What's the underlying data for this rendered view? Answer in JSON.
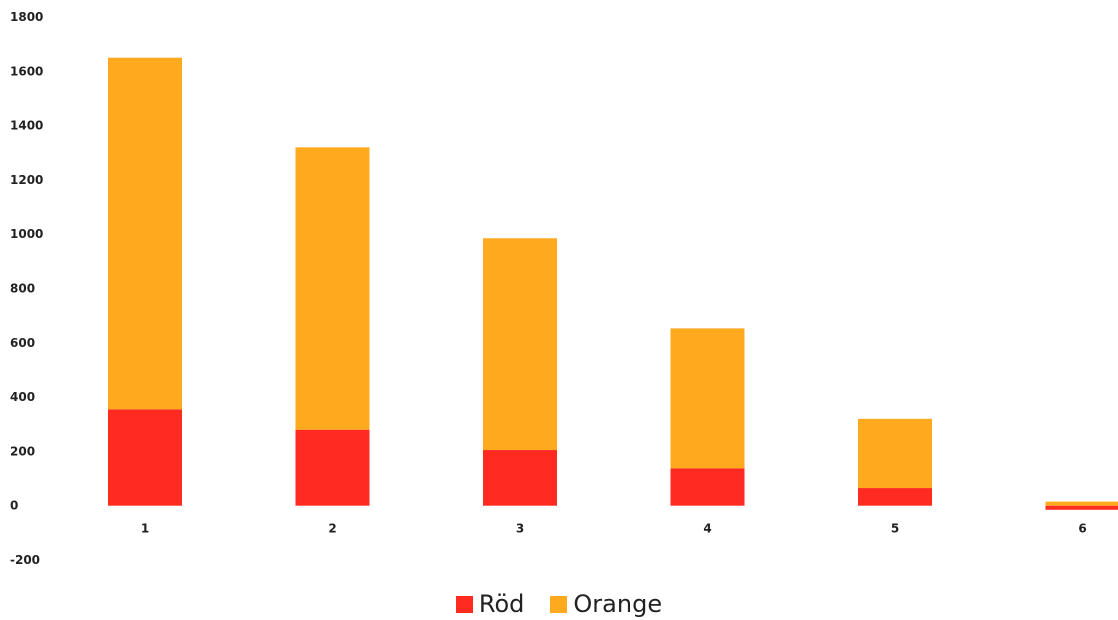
{
  "chart_data": {
    "type": "bar",
    "stacked": true,
    "categories": [
      "1",
      "2",
      "3",
      "4",
      "5",
      "6"
    ],
    "series": [
      {
        "name": "Röd",
        "color": "#ff2a20",
        "values": [
          355,
          280,
          205,
          138,
          65,
          -15
        ]
      },
      {
        "name": "Orange",
        "color": "#ffa91f",
        "values": [
          1295,
          1040,
          780,
          515,
          255,
          15
        ]
      }
    ],
    "y_ticks": [
      "1800",
      "1600",
      "1400",
      "1200",
      "1000",
      "800",
      "600",
      "400",
      "200",
      "0",
      "-200"
    ],
    "ylim": [
      -200,
      1800
    ],
    "grid": false,
    "legend": {
      "placement": "bottom",
      "items": [
        {
          "label": "Röd",
          "color": "#ff2a20"
        },
        {
          "label": "Orange",
          "color": "#ffa91f"
        }
      ]
    },
    "title": "",
    "xlabel": "",
    "ylabel": ""
  }
}
